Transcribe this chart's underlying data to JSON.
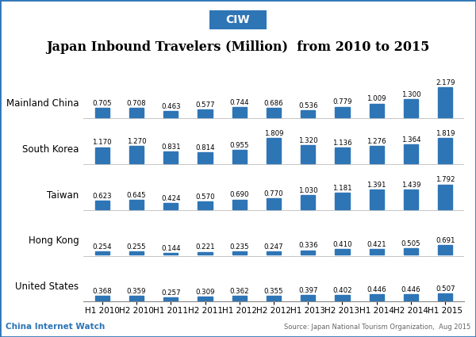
{
  "title": "Japan Inbound Travelers (Million)  from 2010 to 2015",
  "header_label": "CIW",
  "footer_left": "China Internet Watch",
  "footer_right": "Source: Japan National Tourism Organization,  Aug 2015",
  "categories": [
    "Mainland China",
    "South Korea",
    "Taiwan",
    "Hong Kong",
    "United States"
  ],
  "periods": [
    "H1 2010",
    "H2 2010",
    "H1 2011",
    "H2 2011",
    "H1 2012",
    "H2 2012",
    "H1 2013",
    "H2 2013",
    "H1 2014",
    "H2 2014",
    "H1 2015"
  ],
  "data": {
    "Mainland China": [
      0.705,
      0.708,
      0.463,
      0.577,
      0.744,
      0.686,
      0.536,
      0.779,
      1.009,
      1.3,
      2.179
    ],
    "South Korea": [
      1.17,
      1.27,
      0.831,
      0.814,
      0.955,
      1.809,
      1.32,
      1.136,
      1.276,
      1.364,
      1.819
    ],
    "Taiwan": [
      0.623,
      0.645,
      0.424,
      0.57,
      0.69,
      0.77,
      1.03,
      1.181,
      1.391,
      1.439,
      1.792
    ],
    "Hong Kong": [
      0.254,
      0.255,
      0.144,
      0.221,
      0.235,
      0.247,
      0.336,
      0.41,
      0.421,
      0.505,
      0.691
    ],
    "United States": [
      0.368,
      0.359,
      0.257,
      0.309,
      0.362,
      0.355,
      0.397,
      0.402,
      0.446,
      0.446,
      0.507
    ]
  },
  "bar_color": "#2E75B6",
  "title_fontsize": 11.5,
  "cat_label_fontsize": 8.5,
  "val_fontsize": 6.2,
  "tick_fontsize": 7.5,
  "header_bg": "#2E75B6",
  "header_text_color": "#ffffff",
  "footer_left_color": "#2E75B6",
  "footer_right_color": "#666666",
  "background_color": "#ffffff",
  "border_color": "#2E75B6"
}
